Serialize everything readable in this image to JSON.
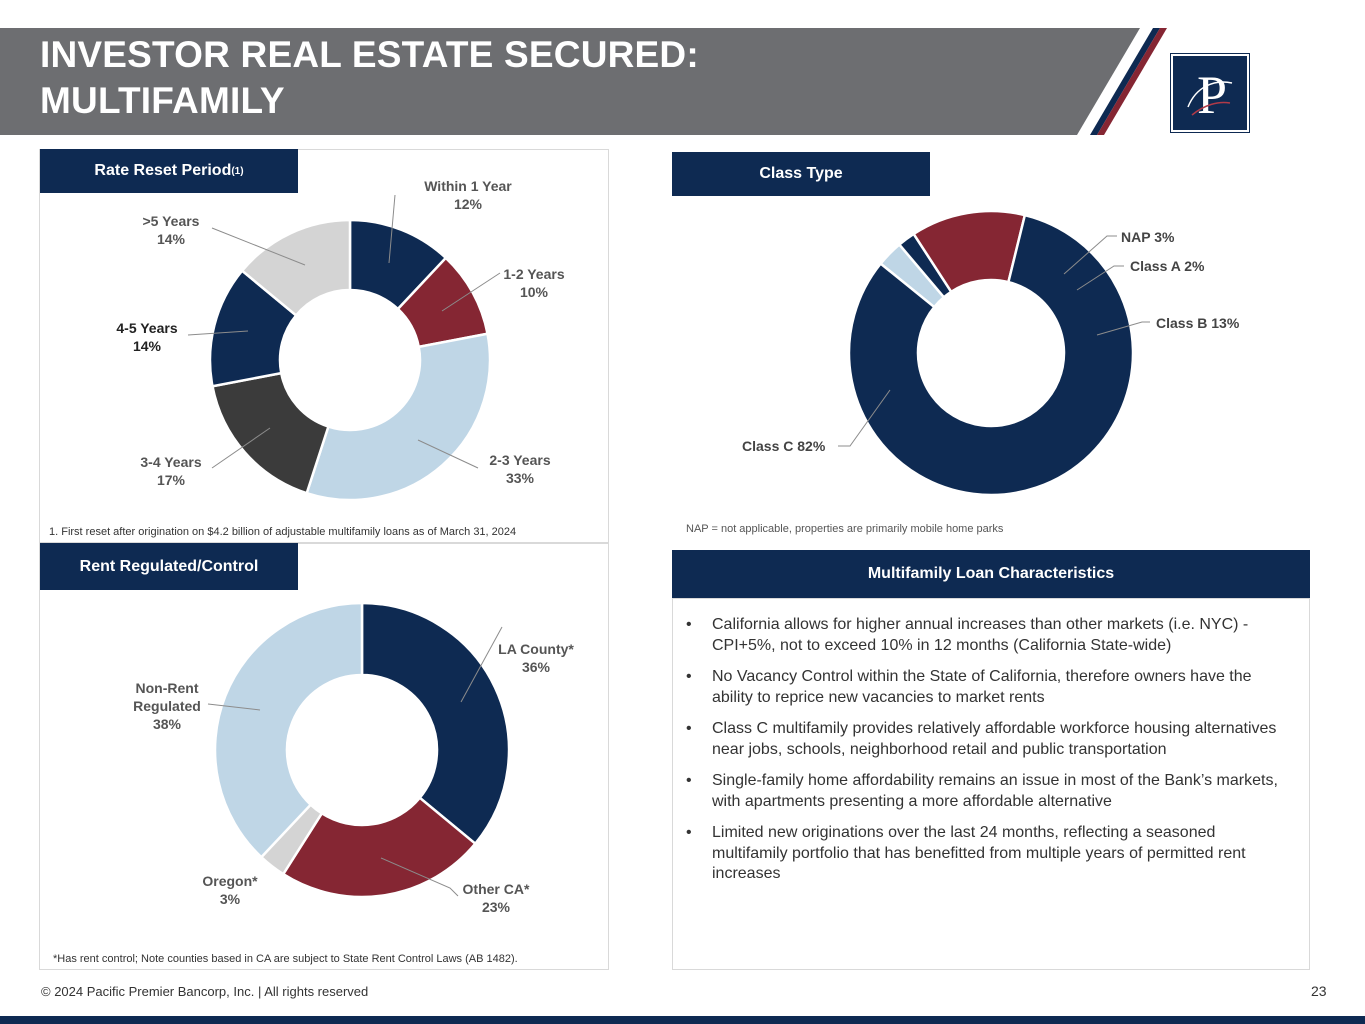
{
  "header": {
    "title_line1": "INVESTOR REAL ESTATE SECURED:",
    "title_line2": "MULTIFAMILY"
  },
  "colors": {
    "navy": "#0e2a52",
    "burgundy": "#852633",
    "light_blue": "#bfd6e6",
    "dark_gray": "#3b3b3b",
    "light_gray": "#d4d4d4",
    "header_gray": "#6d6e71"
  },
  "logo": {
    "icon": "pacific-premier-p-monogram",
    "text": "P"
  },
  "chart_data": [
    {
      "type": "pie",
      "donut": true,
      "title": "Rate Reset Period",
      "title_note": "(1)",
      "categories": [
        "Within 1 Year",
        "1-2 Years",
        "2-3 Years",
        "3-4 Years",
        "4-5 Years",
        ">5  Years"
      ],
      "values": [
        12,
        10,
        33,
        17,
        14,
        14
      ],
      "value_labels": [
        "12%",
        "10%",
        "33%",
        "17%",
        "14%",
        "14%"
      ],
      "colors": [
        "#0e2a52",
        "#852633",
        "#bfd6e6",
        "#3b3b3b",
        "#0e2a52",
        "#d4d4d4"
      ],
      "footnote": "1. First reset after origination on $4.2 billion of adjustable multifamily loans as of March 31, 2024"
    },
    {
      "type": "pie",
      "donut": true,
      "title": "Class Type",
      "categories": [
        "NAP",
        "Class A",
        "Class B",
        "Class C"
      ],
      "values": [
        3,
        2,
        13,
        82
      ],
      "labels": [
        "NAP 3%",
        "Class A 2%",
        "Class B 13%",
        "Class C 82%"
      ],
      "colors": [
        "#bfd6e6",
        "#0e2a52",
        "#852633",
        "#0e2a52"
      ],
      "footnote": "NAP = not applicable, properties are primarily mobile home parks"
    },
    {
      "type": "pie",
      "donut": true,
      "title": "Rent Regulated/Control",
      "categories": [
        "LA County*",
        "Other CA*",
        "Oregon*",
        "Non-Rent Regulated"
      ],
      "values": [
        36,
        23,
        3,
        38
      ],
      "value_labels": [
        "36%",
        "23%",
        "3%",
        "38%"
      ],
      "colors": [
        "#0e2a52",
        "#852633",
        "#d4d4d4",
        "#bfd6e6"
      ],
      "footnote": "*Has rent control; Note counties based in CA are subject to State Rent Control Laws (AB 1482)."
    }
  ],
  "characteristics": {
    "title": "Multifamily Loan Characteristics",
    "bullets": [
      "California allows for higher annual increases than other markets (i.e. NYC) - CPI+5%, not to exceed 10% in 12 months (California State-wide)",
      "No Vacancy Control within the State of California, therefore owners have the ability to reprice new vacancies to market rents",
      "Class C multifamily provides relatively affordable workforce housing alternatives near jobs, schools, neighborhood retail and public transportation",
      "Single-family home affordability remains an issue in most of the Bank’s markets, with apartments presenting a more affordable alternative",
      "Limited new originations over the last 24 months, reflecting a seasoned multifamily portfolio that has benefitted from multiple years of permitted rent increases"
    ]
  },
  "footer": {
    "copyright": "© 2024 Pacific Premier Bancorp, Inc. | All rights reserved",
    "page_number": "23"
  }
}
